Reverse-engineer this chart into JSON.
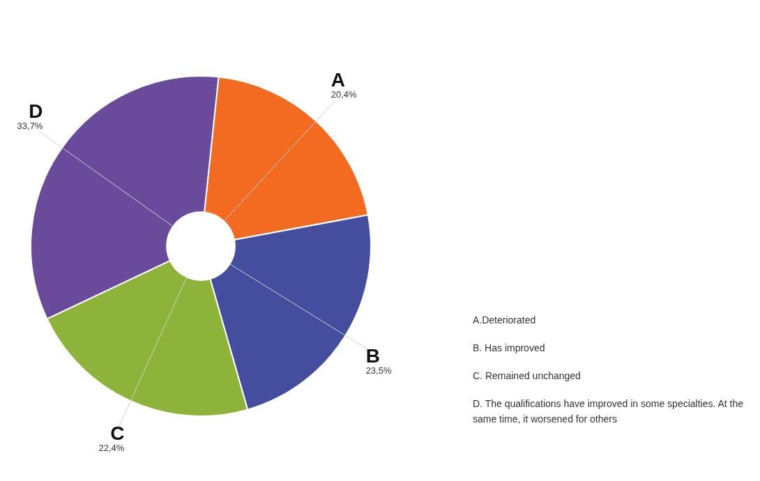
{
  "chart_data": {
    "type": "donut",
    "categories": [
      "A",
      "B",
      "C",
      "D"
    ],
    "values": [
      20.4,
      23.5,
      22.4,
      33.7
    ],
    "value_labels": [
      "20,4%",
      "23,5%",
      "22,4%",
      "33,7%"
    ],
    "colors": [
      "#f26b21",
      "#454e9e",
      "#8db33a",
      "#6a4a9a"
    ],
    "legend": false,
    "annotations": [
      "A.Deteriorated",
      "B. Has improved",
      "C. Remained unchanged",
      "D. The qualifications have improved in some specialties. At the same time, it worsened for others"
    ]
  }
}
